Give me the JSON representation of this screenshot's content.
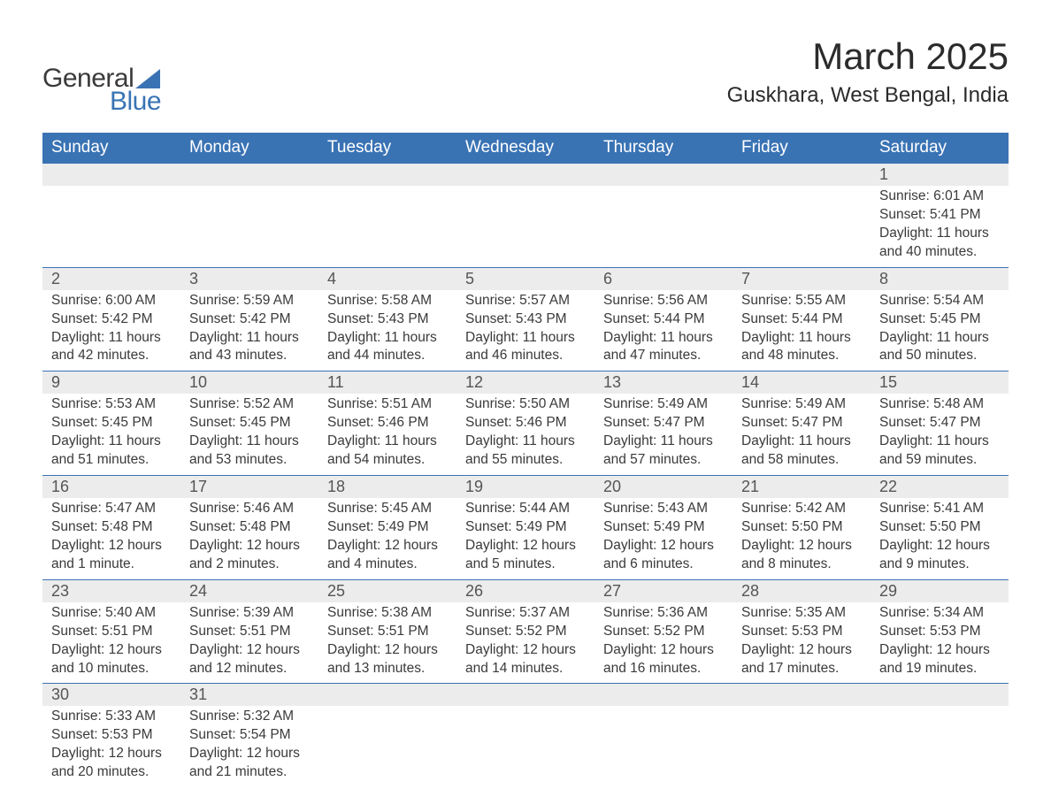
{
  "logo": {
    "general": "General",
    "blue": "Blue",
    "shape_color": "#3a73b4"
  },
  "title": "March 2025",
  "location": "Guskhara, West Bengal, India",
  "day_headers": [
    "Sunday",
    "Monday",
    "Tuesday",
    "Wednesday",
    "Thursday",
    "Friday",
    "Saturday"
  ],
  "colors": {
    "header_bg": "#3a73b4",
    "header_text": "#ffffff",
    "daynum_bg": "#ececec",
    "border": "#3a73b4",
    "text": "#3a3a3a",
    "background": "#ffffff"
  },
  "fonts": {
    "month_title_size": 42,
    "location_size": 24,
    "dayheader_size": 19,
    "daynum_size": 18,
    "details_size": 15.5,
    "logo_size": 30
  },
  "weeks": [
    [
      {
        "n": "",
        "sr": "",
        "ss": "",
        "dl": ""
      },
      {
        "n": "",
        "sr": "",
        "ss": "",
        "dl": ""
      },
      {
        "n": "",
        "sr": "",
        "ss": "",
        "dl": ""
      },
      {
        "n": "",
        "sr": "",
        "ss": "",
        "dl": ""
      },
      {
        "n": "",
        "sr": "",
        "ss": "",
        "dl": ""
      },
      {
        "n": "",
        "sr": "",
        "ss": "",
        "dl": ""
      },
      {
        "n": "1",
        "sr": "Sunrise: 6:01 AM",
        "ss": "Sunset: 5:41 PM",
        "dl": "Daylight: 11 hours and 40 minutes."
      }
    ],
    [
      {
        "n": "2",
        "sr": "Sunrise: 6:00 AM",
        "ss": "Sunset: 5:42 PM",
        "dl": "Daylight: 11 hours and 42 minutes."
      },
      {
        "n": "3",
        "sr": "Sunrise: 5:59 AM",
        "ss": "Sunset: 5:42 PM",
        "dl": "Daylight: 11 hours and 43 minutes."
      },
      {
        "n": "4",
        "sr": "Sunrise: 5:58 AM",
        "ss": "Sunset: 5:43 PM",
        "dl": "Daylight: 11 hours and 44 minutes."
      },
      {
        "n": "5",
        "sr": "Sunrise: 5:57 AM",
        "ss": "Sunset: 5:43 PM",
        "dl": "Daylight: 11 hours and 46 minutes."
      },
      {
        "n": "6",
        "sr": "Sunrise: 5:56 AM",
        "ss": "Sunset: 5:44 PM",
        "dl": "Daylight: 11 hours and 47 minutes."
      },
      {
        "n": "7",
        "sr": "Sunrise: 5:55 AM",
        "ss": "Sunset: 5:44 PM",
        "dl": "Daylight: 11 hours and 48 minutes."
      },
      {
        "n": "8",
        "sr": "Sunrise: 5:54 AM",
        "ss": "Sunset: 5:45 PM",
        "dl": "Daylight: 11 hours and 50 minutes."
      }
    ],
    [
      {
        "n": "9",
        "sr": "Sunrise: 5:53 AM",
        "ss": "Sunset: 5:45 PM",
        "dl": "Daylight: 11 hours and 51 minutes."
      },
      {
        "n": "10",
        "sr": "Sunrise: 5:52 AM",
        "ss": "Sunset: 5:45 PM",
        "dl": "Daylight: 11 hours and 53 minutes."
      },
      {
        "n": "11",
        "sr": "Sunrise: 5:51 AM",
        "ss": "Sunset: 5:46 PM",
        "dl": "Daylight: 11 hours and 54 minutes."
      },
      {
        "n": "12",
        "sr": "Sunrise: 5:50 AM",
        "ss": "Sunset: 5:46 PM",
        "dl": "Daylight: 11 hours and 55 minutes."
      },
      {
        "n": "13",
        "sr": "Sunrise: 5:49 AM",
        "ss": "Sunset: 5:47 PM",
        "dl": "Daylight: 11 hours and 57 minutes."
      },
      {
        "n": "14",
        "sr": "Sunrise: 5:49 AM",
        "ss": "Sunset: 5:47 PM",
        "dl": "Daylight: 11 hours and 58 minutes."
      },
      {
        "n": "15",
        "sr": "Sunrise: 5:48 AM",
        "ss": "Sunset: 5:47 PM",
        "dl": "Daylight: 11 hours and 59 minutes."
      }
    ],
    [
      {
        "n": "16",
        "sr": "Sunrise: 5:47 AM",
        "ss": "Sunset: 5:48 PM",
        "dl": "Daylight: 12 hours and 1 minute."
      },
      {
        "n": "17",
        "sr": "Sunrise: 5:46 AM",
        "ss": "Sunset: 5:48 PM",
        "dl": "Daylight: 12 hours and 2 minutes."
      },
      {
        "n": "18",
        "sr": "Sunrise: 5:45 AM",
        "ss": "Sunset: 5:49 PM",
        "dl": "Daylight: 12 hours and 4 minutes."
      },
      {
        "n": "19",
        "sr": "Sunrise: 5:44 AM",
        "ss": "Sunset: 5:49 PM",
        "dl": "Daylight: 12 hours and 5 minutes."
      },
      {
        "n": "20",
        "sr": "Sunrise: 5:43 AM",
        "ss": "Sunset: 5:49 PM",
        "dl": "Daylight: 12 hours and 6 minutes."
      },
      {
        "n": "21",
        "sr": "Sunrise: 5:42 AM",
        "ss": "Sunset: 5:50 PM",
        "dl": "Daylight: 12 hours and 8 minutes."
      },
      {
        "n": "22",
        "sr": "Sunrise: 5:41 AM",
        "ss": "Sunset: 5:50 PM",
        "dl": "Daylight: 12 hours and 9 minutes."
      }
    ],
    [
      {
        "n": "23",
        "sr": "Sunrise: 5:40 AM",
        "ss": "Sunset: 5:51 PM",
        "dl": "Daylight: 12 hours and 10 minutes."
      },
      {
        "n": "24",
        "sr": "Sunrise: 5:39 AM",
        "ss": "Sunset: 5:51 PM",
        "dl": "Daylight: 12 hours and 12 minutes."
      },
      {
        "n": "25",
        "sr": "Sunrise: 5:38 AM",
        "ss": "Sunset: 5:51 PM",
        "dl": "Daylight: 12 hours and 13 minutes."
      },
      {
        "n": "26",
        "sr": "Sunrise: 5:37 AM",
        "ss": "Sunset: 5:52 PM",
        "dl": "Daylight: 12 hours and 14 minutes."
      },
      {
        "n": "27",
        "sr": "Sunrise: 5:36 AM",
        "ss": "Sunset: 5:52 PM",
        "dl": "Daylight: 12 hours and 16 minutes."
      },
      {
        "n": "28",
        "sr": "Sunrise: 5:35 AM",
        "ss": "Sunset: 5:53 PM",
        "dl": "Daylight: 12 hours and 17 minutes."
      },
      {
        "n": "29",
        "sr": "Sunrise: 5:34 AM",
        "ss": "Sunset: 5:53 PM",
        "dl": "Daylight: 12 hours and 19 minutes."
      }
    ],
    [
      {
        "n": "30",
        "sr": "Sunrise: 5:33 AM",
        "ss": "Sunset: 5:53 PM",
        "dl": "Daylight: 12 hours and 20 minutes."
      },
      {
        "n": "31",
        "sr": "Sunrise: 5:32 AM",
        "ss": "Sunset: 5:54 PM",
        "dl": "Daylight: 12 hours and 21 minutes."
      },
      {
        "n": "",
        "sr": "",
        "ss": "",
        "dl": ""
      },
      {
        "n": "",
        "sr": "",
        "ss": "",
        "dl": ""
      },
      {
        "n": "",
        "sr": "",
        "ss": "",
        "dl": ""
      },
      {
        "n": "",
        "sr": "",
        "ss": "",
        "dl": ""
      },
      {
        "n": "",
        "sr": "",
        "ss": "",
        "dl": ""
      }
    ]
  ]
}
